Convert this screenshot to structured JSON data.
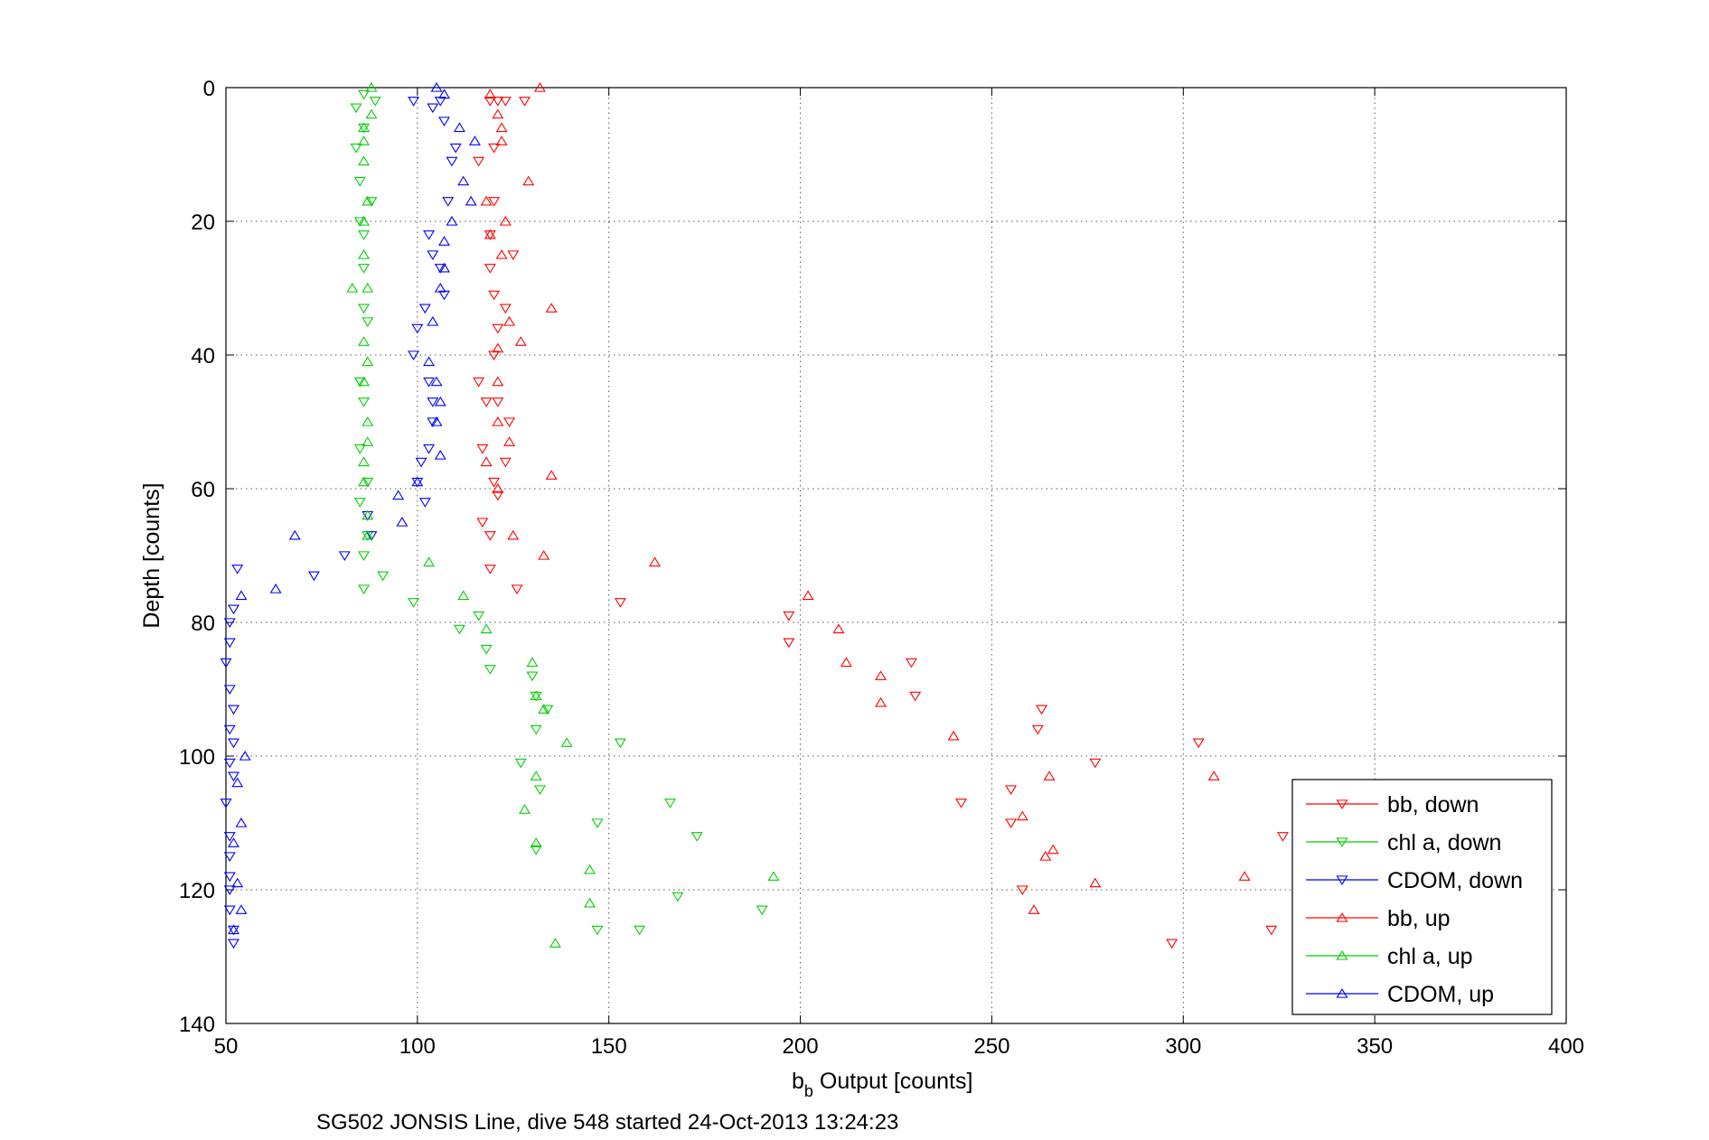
{
  "chart_data": {
    "type": "scatter",
    "title": "",
    "xlabel_main": "b",
    "xlabel_sub": "b",
    "xlabel_rest": " Output [counts]",
    "ylabel": "Depth [counts]",
    "caption": "SG502 JONSIS Line, dive 548 started 24-Oct-2013 13:24:23",
    "xlim": [
      50,
      400
    ],
    "ylim": [
      0,
      140
    ],
    "y_reversed": true,
    "grid": true,
    "x_ticks": [
      "50",
      "100",
      "150",
      "200",
      "250",
      "300",
      "350",
      "400"
    ],
    "y_ticks": [
      "0",
      "20",
      "40",
      "60",
      "80",
      "100",
      "120",
      "140"
    ],
    "legend_position": "bottom-right",
    "series": [
      {
        "name": "bb, down",
        "color": "#ff0000",
        "marker": "triangle-down",
        "points": [
          [
            119,
            2
          ],
          [
            121,
            2
          ],
          [
            128,
            2
          ],
          [
            123,
            2
          ],
          [
            120,
            9
          ],
          [
            116,
            11
          ],
          [
            120,
            17
          ],
          [
            119,
            22
          ],
          [
            125,
            25
          ],
          [
            119,
            27
          ],
          [
            120,
            31
          ],
          [
            123,
            33
          ],
          [
            121,
            36
          ],
          [
            120,
            40
          ],
          [
            116,
            44
          ],
          [
            118,
            47
          ],
          [
            121,
            47
          ],
          [
            124,
            50
          ],
          [
            117,
            54
          ],
          [
            123,
            56
          ],
          [
            120,
            59
          ],
          [
            121,
            61
          ],
          [
            117,
            65
          ],
          [
            119,
            67
          ],
          [
            119,
            72
          ],
          [
            126,
            75
          ],
          [
            153,
            77
          ],
          [
            197,
            79
          ],
          [
            197,
            83
          ],
          [
            229,
            86
          ],
          [
            230,
            91
          ],
          [
            263,
            93
          ],
          [
            262,
            96
          ],
          [
            304,
            98
          ],
          [
            277,
            101
          ],
          [
            242,
            107
          ],
          [
            255,
            105
          ],
          [
            255,
            110
          ],
          [
            326,
            112
          ],
          [
            258,
            120
          ],
          [
            323,
            126
          ],
          [
            297,
            128
          ]
        ]
      },
      {
        "name": "chl a, down",
        "color": "#00d000",
        "marker": "triangle-down",
        "points": [
          [
            86,
            1
          ],
          [
            84,
            3
          ],
          [
            89,
            2
          ],
          [
            84,
            9
          ],
          [
            86,
            6
          ],
          [
            85,
            14
          ],
          [
            88,
            17
          ],
          [
            85,
            20
          ],
          [
            86,
            22
          ],
          [
            86,
            27
          ],
          [
            86,
            33
          ],
          [
            87,
            35
          ],
          [
            85,
            44
          ],
          [
            86,
            47
          ],
          [
            85,
            54
          ],
          [
            87,
            59
          ],
          [
            85,
            62
          ],
          [
            87,
            67
          ],
          [
            91,
            73
          ],
          [
            86,
            70
          ],
          [
            86,
            75
          ],
          [
            99,
            77
          ],
          [
            116,
            79
          ],
          [
            111,
            81
          ],
          [
            118,
            84
          ],
          [
            119,
            87
          ],
          [
            130,
            88
          ],
          [
            131,
            91
          ],
          [
            134,
            93
          ],
          [
            131,
            96
          ],
          [
            153,
            98
          ],
          [
            127,
            101
          ],
          [
            132,
            105
          ],
          [
            147,
            110
          ],
          [
            166,
            107
          ],
          [
            173,
            112
          ],
          [
            131,
            114
          ],
          [
            168,
            121
          ],
          [
            190,
            123
          ],
          [
            147,
            126
          ],
          [
            158,
            126
          ]
        ]
      },
      {
        "name": "CDOM, down",
        "color": "#0000ff",
        "marker": "triangle-down",
        "points": [
          [
            99,
            2
          ],
          [
            104,
            3
          ],
          [
            106,
            2
          ],
          [
            107,
            5
          ],
          [
            110,
            9
          ],
          [
            109,
            11
          ],
          [
            108,
            17
          ],
          [
            103,
            22
          ],
          [
            104,
            25
          ],
          [
            106,
            27
          ],
          [
            107,
            31
          ],
          [
            102,
            33
          ],
          [
            100,
            36
          ],
          [
            99,
            40
          ],
          [
            103,
            44
          ],
          [
            104,
            47
          ],
          [
            104,
            50
          ],
          [
            103,
            54
          ],
          [
            101,
            56
          ],
          [
            100,
            59
          ],
          [
            102,
            62
          ],
          [
            87,
            64
          ],
          [
            88,
            67
          ],
          [
            81,
            70
          ],
          [
            73,
            73
          ],
          [
            53,
            72
          ],
          [
            52,
            78
          ],
          [
            51,
            80
          ],
          [
            51,
            83
          ],
          [
            50,
            86
          ],
          [
            51,
            90
          ],
          [
            52,
            93
          ],
          [
            51,
            96
          ],
          [
            52,
            98
          ],
          [
            51,
            101
          ],
          [
            52,
            103
          ],
          [
            50,
            107
          ],
          [
            51,
            112
          ],
          [
            51,
            115
          ],
          [
            51,
            118
          ],
          [
            51,
            120
          ],
          [
            51,
            123
          ],
          [
            52,
            126
          ],
          [
            52,
            128
          ]
        ]
      },
      {
        "name": "bb, up",
        "color": "#ff0000",
        "marker": "triangle-up",
        "points": [
          [
            132,
            0
          ],
          [
            119,
            1
          ],
          [
            121,
            4
          ],
          [
            122,
            6
          ],
          [
            122,
            8
          ],
          [
            129,
            14
          ],
          [
            118,
            17
          ],
          [
            123,
            20
          ],
          [
            119,
            22
          ],
          [
            122,
            25
          ],
          [
            135,
            33
          ],
          [
            124,
            35
          ],
          [
            127,
            38
          ],
          [
            121,
            39
          ],
          [
            121,
            44
          ],
          [
            121,
            50
          ],
          [
            124,
            53
          ],
          [
            118,
            56
          ],
          [
            135,
            58
          ],
          [
            121,
            60
          ],
          [
            125,
            67
          ],
          [
            133,
            70
          ],
          [
            162,
            71
          ],
          [
            202,
            76
          ],
          [
            210,
            81
          ],
          [
            212,
            86
          ],
          [
            221,
            88
          ],
          [
            221,
            92
          ],
          [
            240,
            97
          ],
          [
            265,
            103
          ],
          [
            258,
            109
          ],
          [
            266,
            114
          ],
          [
            264,
            115
          ],
          [
            277,
            119
          ],
          [
            316,
            118
          ],
          [
            261,
            123
          ],
          [
            308,
            103
          ]
        ]
      },
      {
        "name": "chl a, up",
        "color": "#00d000",
        "marker": "triangle-up",
        "points": [
          [
            88,
            0
          ],
          [
            88,
            4
          ],
          [
            86,
            6
          ],
          [
            86,
            8
          ],
          [
            86,
            11
          ],
          [
            87,
            17
          ],
          [
            86,
            20
          ],
          [
            86,
            25
          ],
          [
            87,
            30
          ],
          [
            83,
            30
          ],
          [
            86,
            38
          ],
          [
            87,
            41
          ],
          [
            86,
            44
          ],
          [
            87,
            50
          ],
          [
            87,
            53
          ],
          [
            86,
            56
          ],
          [
            86,
            59
          ],
          [
            87,
            64
          ],
          [
            87,
            67
          ],
          [
            103,
            71
          ],
          [
            112,
            76
          ],
          [
            118,
            81
          ],
          [
            130,
            86
          ],
          [
            131,
            91
          ],
          [
            133,
            93
          ],
          [
            139,
            98
          ],
          [
            131,
            103
          ],
          [
            128,
            108
          ],
          [
            131,
            113
          ],
          [
            145,
            117
          ],
          [
            193,
            118
          ],
          [
            145,
            122
          ],
          [
            136,
            128
          ]
        ]
      },
      {
        "name": "CDOM, up",
        "color": "#0000ff",
        "marker": "triangle-up",
        "points": [
          [
            105,
            0
          ],
          [
            107,
            1
          ],
          [
            111,
            6
          ],
          [
            115,
            8
          ],
          [
            112,
            14
          ],
          [
            114,
            17
          ],
          [
            109,
            20
          ],
          [
            107,
            23
          ],
          [
            107,
            27
          ],
          [
            106,
            30
          ],
          [
            104,
            35
          ],
          [
            103,
            41
          ],
          [
            105,
            44
          ],
          [
            106,
            47
          ],
          [
            105,
            50
          ],
          [
            106,
            55
          ],
          [
            100,
            59
          ],
          [
            95,
            61
          ],
          [
            96,
            65
          ],
          [
            68,
            67
          ],
          [
            63,
            75
          ],
          [
            54,
            76
          ],
          [
            55,
            100
          ],
          [
            53,
            104
          ],
          [
            54,
            110
          ],
          [
            52,
            113
          ],
          [
            53,
            119
          ],
          [
            54,
            123
          ],
          [
            52,
            126
          ]
        ]
      }
    ]
  }
}
